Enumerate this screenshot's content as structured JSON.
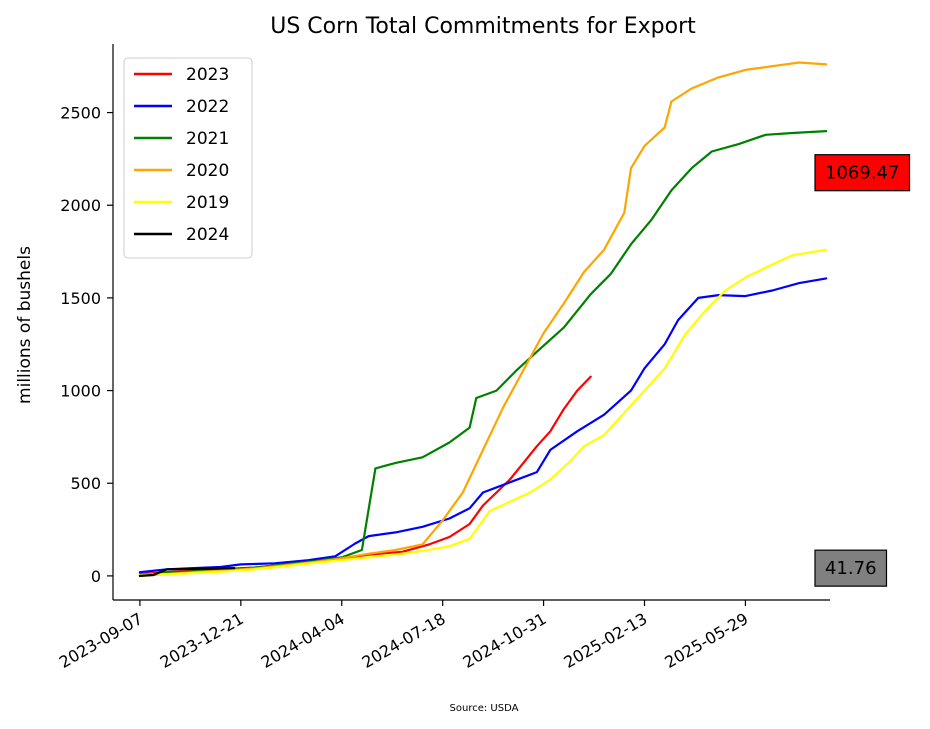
{
  "chart_data": {
    "type": "line",
    "title": "US Corn Total Commitments for Export",
    "ylabel": "millions of bushels",
    "xlabel": "",
    "source": "Source: USDA",
    "x_ticks": [
      "2023-09-07",
      "2023-12-21",
      "2024-04-04",
      "2024-07-18",
      "2024-10-31",
      "2025-02-13",
      "2025-05-29"
    ],
    "y_ticks": [
      0,
      500,
      1000,
      1500,
      2000,
      2500
    ],
    "xlim": [
      "2023-08-10",
      "2025-08-25"
    ],
    "ylim": [
      -130,
      2870
    ],
    "grid": false,
    "legend_position": "top-left",
    "series": [
      {
        "name": "2023",
        "color": "#ff0000",
        "points": [
          [
            "2023-09-07",
            10
          ],
          [
            "2023-10-05",
            20
          ],
          [
            "2023-11-02",
            28
          ],
          [
            "2023-12-07",
            38
          ],
          [
            "2024-01-04",
            45
          ],
          [
            "2024-02-01",
            60
          ],
          [
            "2024-03-07",
            80
          ],
          [
            "2024-04-04",
            95
          ],
          [
            "2024-05-02",
            115
          ],
          [
            "2024-06-06",
            130
          ],
          [
            "2024-07-04",
            170
          ],
          [
            "2024-07-25",
            210
          ],
          [
            "2024-08-15",
            280
          ],
          [
            "2024-08-29",
            380
          ],
          [
            "2024-09-12",
            450
          ],
          [
            "2024-09-26",
            520
          ],
          [
            "2024-10-10",
            610
          ],
          [
            "2024-10-24",
            700
          ],
          [
            "2024-11-07",
            780
          ],
          [
            "2024-11-21",
            900
          ],
          [
            "2024-12-05",
            1000
          ],
          [
            "2024-12-19",
            1075
          ]
        ]
      },
      {
        "name": "2022",
        "color": "#0000ff",
        "points": [
          [
            "2023-09-07",
            20
          ],
          [
            "2023-10-05",
            35
          ],
          [
            "2023-11-02",
            42
          ],
          [
            "2023-11-30",
            48
          ],
          [
            "2023-12-21",
            62
          ],
          [
            "2024-01-25",
            68
          ],
          [
            "2024-02-29",
            85
          ],
          [
            "2024-03-28",
            105
          ],
          [
            "2024-04-18",
            175
          ],
          [
            "2024-05-02",
            215
          ],
          [
            "2024-05-30",
            235
          ],
          [
            "2024-06-27",
            265
          ],
          [
            "2024-07-25",
            310
          ],
          [
            "2024-08-15",
            365
          ],
          [
            "2024-08-29",
            450
          ],
          [
            "2024-09-26",
            505
          ],
          [
            "2024-10-24",
            560
          ],
          [
            "2024-11-07",
            680
          ],
          [
            "2024-12-05",
            780
          ],
          [
            "2025-01-02",
            870
          ],
          [
            "2025-01-30",
            1000
          ],
          [
            "2025-02-13",
            1120
          ],
          [
            "2025-03-06",
            1250
          ],
          [
            "2025-03-20",
            1380
          ],
          [
            "2025-04-10",
            1500
          ],
          [
            "2025-05-01",
            1515
          ],
          [
            "2025-05-29",
            1510
          ],
          [
            "2025-06-26",
            1540
          ],
          [
            "2025-07-24",
            1580
          ],
          [
            "2025-08-21",
            1605
          ]
        ]
      },
      {
        "name": "2021",
        "color": "#008000",
        "points": [
          [
            "2023-09-07",
            5
          ],
          [
            "2023-10-05",
            15
          ],
          [
            "2023-11-02",
            25
          ],
          [
            "2023-12-07",
            35
          ],
          [
            "2024-01-04",
            45
          ],
          [
            "2024-02-01",
            60
          ],
          [
            "2024-03-07",
            80
          ],
          [
            "2024-04-04",
            100
          ],
          [
            "2024-04-25",
            140
          ],
          [
            "2024-05-09",
            580
          ],
          [
            "2024-05-30",
            610
          ],
          [
            "2024-06-27",
            640
          ],
          [
            "2024-07-25",
            720
          ],
          [
            "2024-08-15",
            800
          ],
          [
            "2024-08-22",
            960
          ],
          [
            "2024-09-12",
            1000
          ],
          [
            "2024-10-03",
            1110
          ],
          [
            "2024-10-24",
            1210
          ],
          [
            "2024-11-21",
            1340
          ],
          [
            "2024-12-19",
            1520
          ],
          [
            "2025-01-09",
            1630
          ],
          [
            "2025-01-30",
            1790
          ],
          [
            "2025-02-20",
            1920
          ],
          [
            "2025-03-13",
            2080
          ],
          [
            "2025-04-03",
            2200
          ],
          [
            "2025-04-24",
            2290
          ],
          [
            "2025-05-22",
            2330
          ],
          [
            "2025-06-19",
            2380
          ],
          [
            "2025-07-17",
            2390
          ],
          [
            "2025-08-21",
            2400
          ]
        ]
      },
      {
        "name": "2020",
        "color": "#ffa500",
        "points": [
          [
            "2023-09-07",
            0
          ],
          [
            "2023-10-05",
            10
          ],
          [
            "2023-11-02",
            20
          ],
          [
            "2023-12-07",
            30
          ],
          [
            "2024-01-04",
            40
          ],
          [
            "2024-02-01",
            55
          ],
          [
            "2024-03-07",
            75
          ],
          [
            "2024-04-04",
            95
          ],
          [
            "2024-05-02",
            120
          ],
          [
            "2024-05-30",
            140
          ],
          [
            "2024-06-27",
            170
          ],
          [
            "2024-07-18",
            300
          ],
          [
            "2024-08-08",
            450
          ],
          [
            "2024-08-29",
            680
          ],
          [
            "2024-09-19",
            910
          ],
          [
            "2024-10-10",
            1110
          ],
          [
            "2024-10-31",
            1310
          ],
          [
            "2024-11-21",
            1470
          ],
          [
            "2024-12-12",
            1640
          ],
          [
            "2025-01-02",
            1760
          ],
          [
            "2025-01-23",
            1960
          ],
          [
            "2025-01-30",
            2200
          ],
          [
            "2025-02-13",
            2320
          ],
          [
            "2025-03-06",
            2420
          ],
          [
            "2025-03-13",
            2560
          ],
          [
            "2025-04-03",
            2630
          ],
          [
            "2025-05-01",
            2690
          ],
          [
            "2025-05-29",
            2730
          ],
          [
            "2025-06-26",
            2750
          ],
          [
            "2025-07-24",
            2770
          ],
          [
            "2025-08-21",
            2760
          ]
        ]
      },
      {
        "name": "2019",
        "color": "#ffff00",
        "points": [
          [
            "2023-09-07",
            5
          ],
          [
            "2023-10-05",
            10
          ],
          [
            "2023-11-02",
            15
          ],
          [
            "2023-12-07",
            25
          ],
          [
            "2024-01-04",
            35
          ],
          [
            "2024-02-01",
            50
          ],
          [
            "2024-03-07",
            70
          ],
          [
            "2024-04-04",
            85
          ],
          [
            "2024-05-02",
            100
          ],
          [
            "2024-05-30",
            115
          ],
          [
            "2024-06-27",
            135
          ],
          [
            "2024-07-25",
            160
          ],
          [
            "2024-08-15",
            200
          ],
          [
            "2024-09-05",
            350
          ],
          [
            "2024-09-26",
            400
          ],
          [
            "2024-10-17",
            450
          ],
          [
            "2024-11-07",
            520
          ],
          [
            "2024-11-28",
            620
          ],
          [
            "2024-12-12",
            700
          ],
          [
            "2025-01-02",
            760
          ],
          [
            "2025-01-23",
            880
          ],
          [
            "2025-02-13",
            1000
          ],
          [
            "2025-03-06",
            1120
          ],
          [
            "2025-03-27",
            1300
          ],
          [
            "2025-04-17",
            1430
          ],
          [
            "2025-05-08",
            1540
          ],
          [
            "2025-05-29",
            1610
          ],
          [
            "2025-06-26",
            1680
          ],
          [
            "2025-07-17",
            1730
          ],
          [
            "2025-08-21",
            1760
          ]
        ]
      },
      {
        "name": "2024",
        "color": "#000000",
        "points": [
          [
            "2023-09-07",
            0
          ],
          [
            "2023-09-21",
            5
          ],
          [
            "2023-10-05",
            35
          ],
          [
            "2023-11-02",
            38
          ],
          [
            "2023-11-30",
            40
          ],
          [
            "2023-12-14",
            42
          ]
        ]
      }
    ],
    "callouts": [
      {
        "label": "1069.47",
        "value": 1069.47,
        "color": "#ff0000"
      },
      {
        "label": "41.76",
        "value": 41.76,
        "color": "#808080"
      }
    ]
  }
}
